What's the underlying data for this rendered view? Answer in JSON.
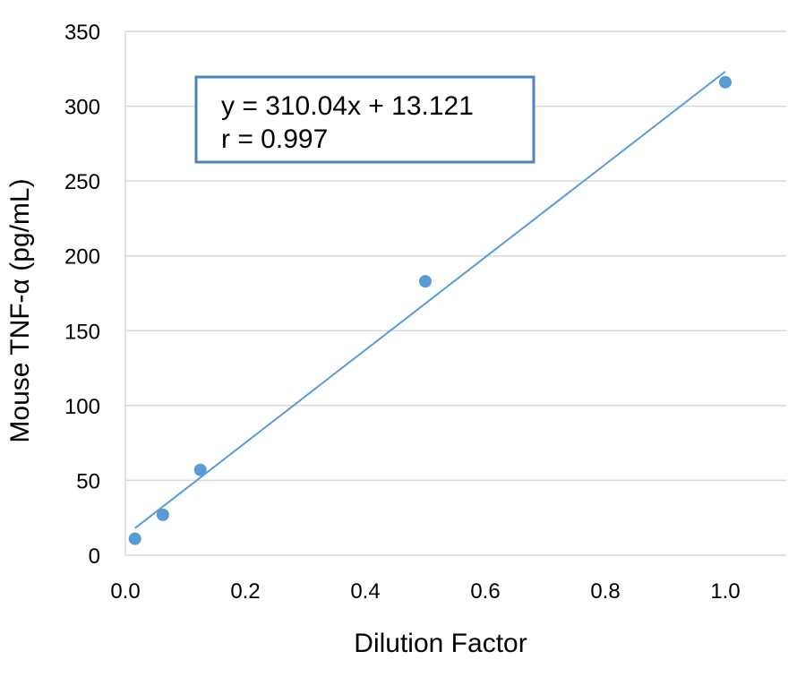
{
  "chart_data": {
    "type": "scatter",
    "title": "",
    "xlabel": "Dilution Factor",
    "ylabel": "Mouse TNF-α (pg/mL)",
    "xlim": [
      0,
      1.0
    ],
    "ylim": [
      0,
      350
    ],
    "xticks": [
      0.0,
      0.2,
      0.4,
      0.6,
      0.8,
      1.0
    ],
    "xtick_labels": [
      "0.0",
      "0.2",
      "0.4",
      "0.6",
      "0.8",
      "1.0"
    ],
    "yticks": [
      0,
      50,
      100,
      150,
      200,
      250,
      300,
      350
    ],
    "ytick_labels": [
      "0",
      "50",
      "100",
      "150",
      "200",
      "250",
      "300",
      "350"
    ],
    "grid": "horizontal",
    "points": [
      {
        "x": 0.016,
        "y": 11
      },
      {
        "x": 0.0625,
        "y": 27
      },
      {
        "x": 0.125,
        "y": 57
      },
      {
        "x": 0.5,
        "y": 183
      },
      {
        "x": 1.0,
        "y": 316
      }
    ],
    "trendline": {
      "slope": 310.04,
      "intercept": 13.121,
      "x_range": [
        0.016,
        1.0
      ],
      "equation_text": "y = 310.04x + 13.121",
      "r_text": "r = 0.997"
    },
    "colors": {
      "points": "#5B9BD5",
      "trendline": "#5B9BD5",
      "annotation_border": "#4F81BD",
      "gridline": "#D9D9D9"
    }
  }
}
